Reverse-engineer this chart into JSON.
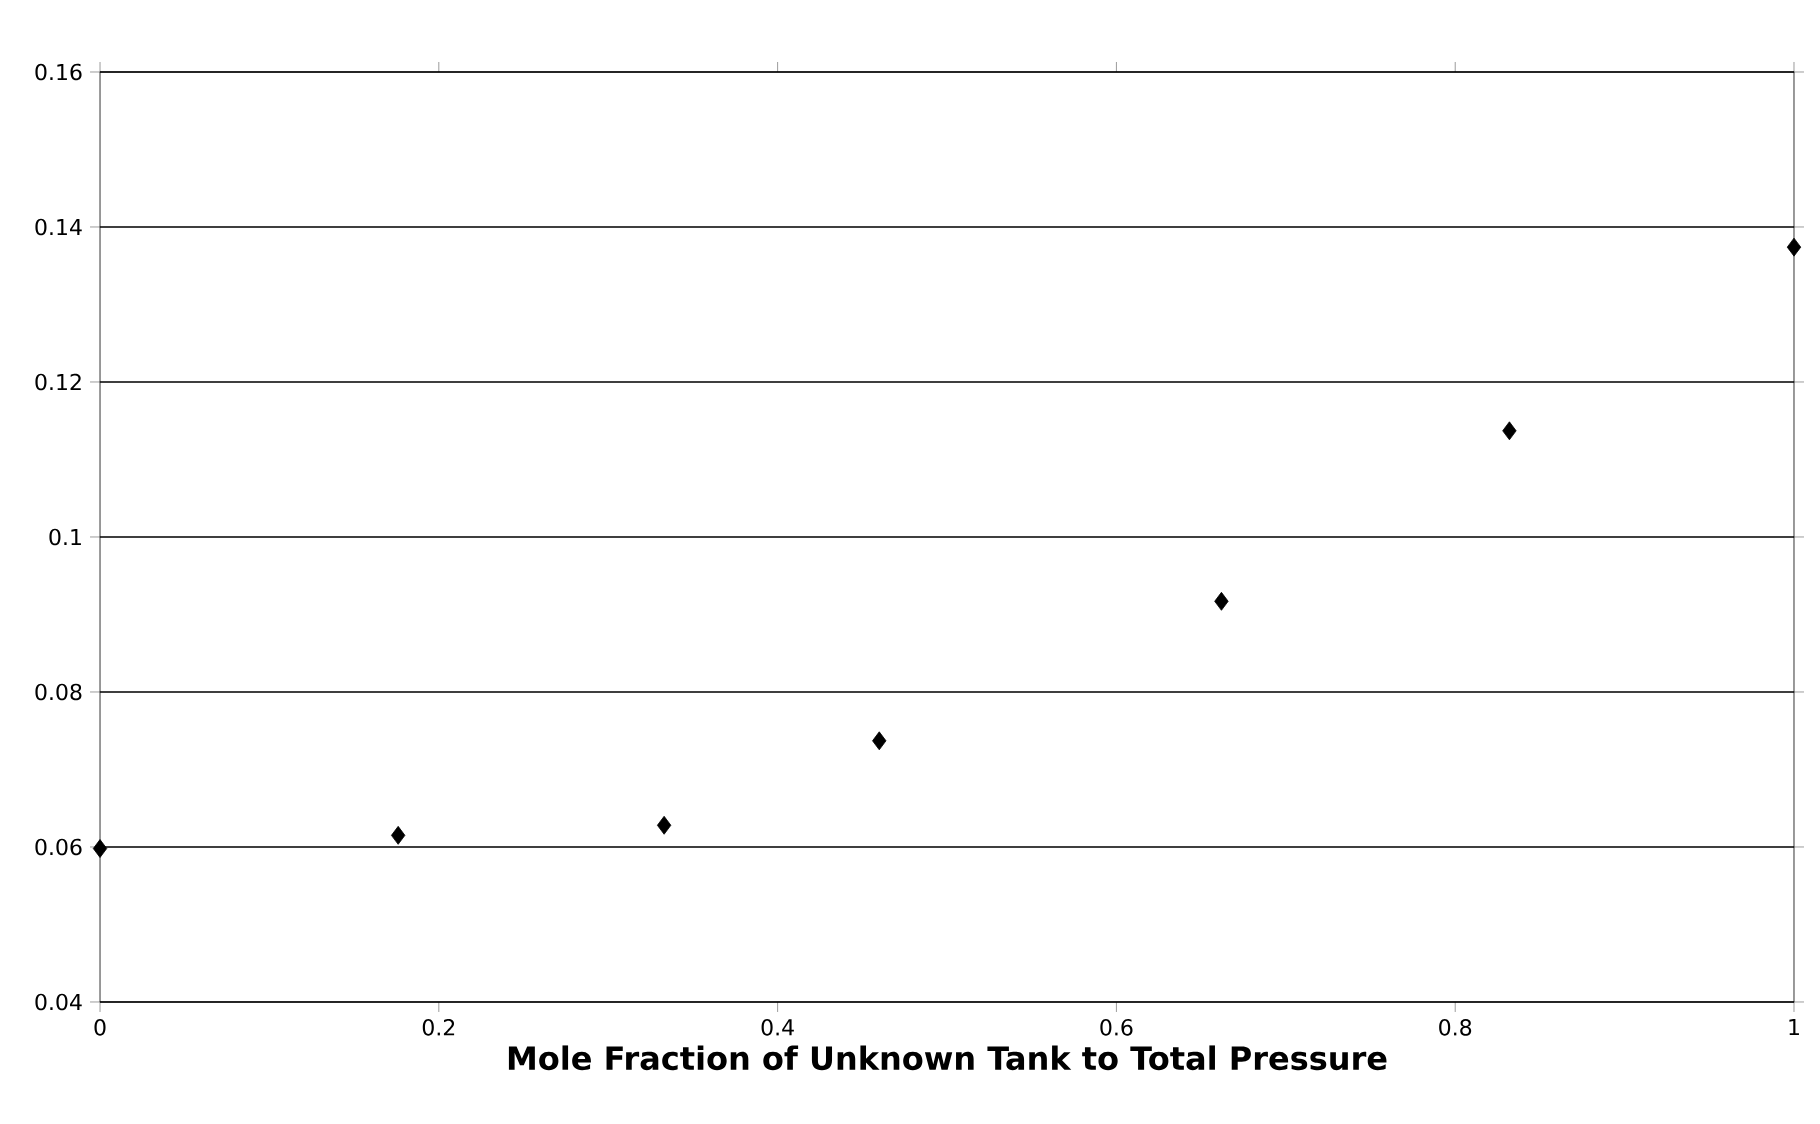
{
  "chart_data": {
    "type": "scatter",
    "xlabel": "Mole Fraction of Unknown Tank to Total Pressure",
    "x": [
      0,
      0.176,
      0.333,
      0.46,
      0.662,
      0.832,
      1.0
    ],
    "values": [
      0.0598,
      0.0615,
      0.0628,
      0.0737,
      0.0917,
      0.1137,
      0.1374
    ],
    "color": "#000000",
    "marker": "diamond",
    "xlim": [
      0,
      1
    ],
    "xticks": [
      0,
      0.2,
      0.4,
      0.6,
      0.8,
      1
    ],
    "ylim": [
      0.04,
      0.16
    ],
    "yticks": [
      0.04,
      0.06,
      0.08,
      0.1,
      0.12,
      0.14,
      0.16
    ],
    "grid": "y"
  }
}
